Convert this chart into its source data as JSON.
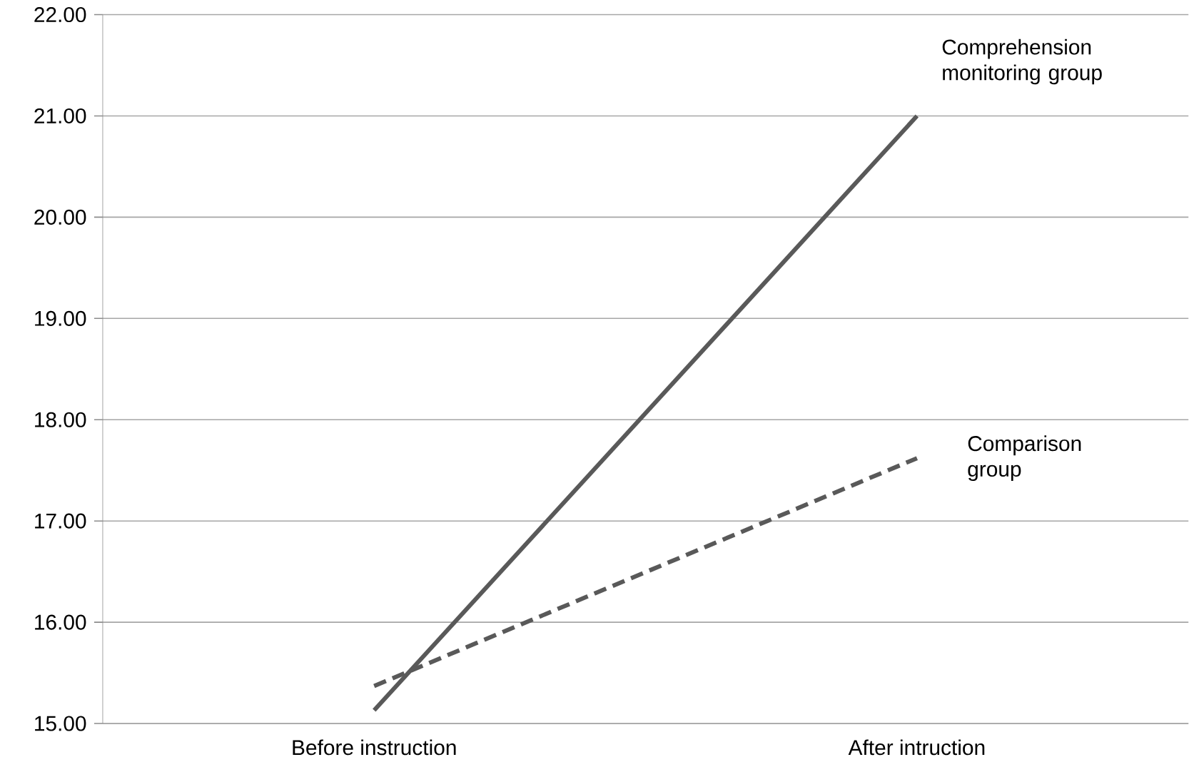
{
  "chart_data": {
    "type": "line",
    "categories": [
      "Before instruction",
      "After intruction"
    ],
    "series": [
      {
        "name": "Comprehension monitoring group",
        "color": "#595959",
        "line_style": "solid",
        "values": [
          15.13,
          21.0
        ]
      },
      {
        "name": "Comparison group",
        "color": "#595959",
        "line_style": "dashed",
        "values": [
          15.37,
          17.62
        ]
      }
    ],
    "ylim": [
      15,
      22
    ],
    "yticks": [
      {
        "value": 15,
        "label": "15.00"
      },
      {
        "value": 16,
        "label": "16.00"
      },
      {
        "value": 17,
        "label": "17.00"
      },
      {
        "value": 18,
        "label": "18.00"
      },
      {
        "value": 19,
        "label": "19.00"
      },
      {
        "value": 20,
        "label": "20.00"
      },
      {
        "value": 21,
        "label": "21.00"
      },
      {
        "value": 22,
        "label": "22.00"
      }
    ],
    "grid": "y",
    "marker": "none"
  }
}
